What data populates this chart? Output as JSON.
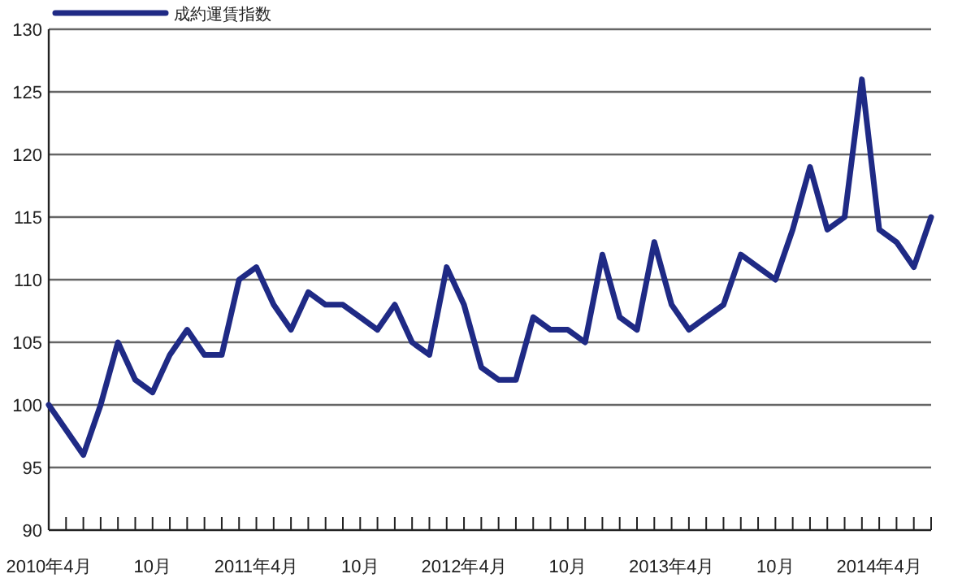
{
  "chart_data": {
    "type": "line",
    "x": [
      "2010-04",
      "2010-05",
      "2010-06",
      "2010-07",
      "2010-08",
      "2010-09",
      "2010-10",
      "2010-11",
      "2010-12",
      "2011-01",
      "2011-02",
      "2011-03",
      "2011-04",
      "2011-05",
      "2011-06",
      "2011-07",
      "2011-08",
      "2011-09",
      "2011-10",
      "2011-11",
      "2011-12",
      "2012-01",
      "2012-02",
      "2012-03",
      "2012-04",
      "2012-05",
      "2012-06",
      "2012-07",
      "2012-08",
      "2012-09",
      "2012-10",
      "2012-11",
      "2012-12",
      "2013-01",
      "2013-02",
      "2013-03",
      "2013-04",
      "2013-05",
      "2013-06",
      "2013-07",
      "2013-08",
      "2013-09",
      "2013-10",
      "2013-11",
      "2013-12",
      "2014-01",
      "2014-02",
      "2014-03",
      "2014-04",
      "2014-05",
      "2014-06",
      "2014-07"
    ],
    "series": [
      {
        "name": "成約運賃指数",
        "color": "#1f2a85",
        "values": [
          100,
          98,
          96,
          100,
          105,
          102,
          101,
          104,
          106,
          104,
          104,
          110,
          111,
          108,
          106,
          109,
          108,
          108,
          107,
          106,
          108,
          105,
          104,
          111,
          108,
          103,
          102,
          102,
          107,
          106,
          106,
          105,
          112,
          107,
          106,
          113,
          108,
          106,
          107,
          108,
          112,
          111,
          110,
          114,
          119,
          114,
          115,
          126,
          114,
          113,
          111,
          115
        ]
      }
    ],
    "xlim": [
      "2010-04",
      "2014-07"
    ],
    "xticks": [
      {
        "value": "2010-04",
        "label": "2010年4月"
      },
      {
        "value": "2010-05",
        "label": null
      },
      {
        "value": "2010-06",
        "label": null
      },
      {
        "value": "2010-07",
        "label": null
      },
      {
        "value": "2010-08",
        "label": null
      },
      {
        "value": "2010-09",
        "label": null
      },
      {
        "value": "2010-10",
        "label": "10月"
      },
      {
        "value": "2010-11",
        "label": null
      },
      {
        "value": "2010-12",
        "label": null
      },
      {
        "value": "2011-01",
        "label": null
      },
      {
        "value": "2011-02",
        "label": null
      },
      {
        "value": "2011-03",
        "label": null
      },
      {
        "value": "2011-04",
        "label": "2011年4月"
      },
      {
        "value": "2011-05",
        "label": null
      },
      {
        "value": "2011-06",
        "label": null
      },
      {
        "value": "2011-07",
        "label": null
      },
      {
        "value": "2011-08",
        "label": null
      },
      {
        "value": "2011-09",
        "label": null
      },
      {
        "value": "2011-10",
        "label": "10月"
      },
      {
        "value": "2011-11",
        "label": null
      },
      {
        "value": "2011-12",
        "label": null
      },
      {
        "value": "2012-01",
        "label": null
      },
      {
        "value": "2012-02",
        "label": null
      },
      {
        "value": "2012-03",
        "label": null
      },
      {
        "value": "2012-04",
        "label": "2012年4月"
      },
      {
        "value": "2012-05",
        "label": null
      },
      {
        "value": "2012-06",
        "label": null
      },
      {
        "value": "2012-07",
        "label": null
      },
      {
        "value": "2012-08",
        "label": null
      },
      {
        "value": "2012-09",
        "label": null
      },
      {
        "value": "2012-10",
        "label": "10月"
      },
      {
        "value": "2012-11",
        "label": null
      },
      {
        "value": "2012-12",
        "label": null
      },
      {
        "value": "2013-01",
        "label": null
      },
      {
        "value": "2013-02",
        "label": null
      },
      {
        "value": "2013-03",
        "label": null
      },
      {
        "value": "2013-04",
        "label": "2013年4月"
      },
      {
        "value": "2013-05",
        "label": null
      },
      {
        "value": "2013-06",
        "label": null
      },
      {
        "value": "2013-07",
        "label": null
      },
      {
        "value": "2013-08",
        "label": null
      },
      {
        "value": "2013-09",
        "label": null
      },
      {
        "value": "2013-10",
        "label": "10月"
      },
      {
        "value": "2013-11",
        "label": null
      },
      {
        "value": "2013-12",
        "label": null
      },
      {
        "value": "2014-01",
        "label": null
      },
      {
        "value": "2014-02",
        "label": null
      },
      {
        "value": "2014-03",
        "label": null
      },
      {
        "value": "2014-04",
        "label": "2014年4月"
      },
      {
        "value": "2014-05",
        "label": null
      },
      {
        "value": "2014-06",
        "label": null
      },
      {
        "value": "2014-07",
        "label": null
      }
    ],
    "ylim": [
      90,
      130
    ],
    "yticks": [
      90,
      95,
      100,
      105,
      110,
      115,
      120,
      125,
      130
    ],
    "grid": "y",
    "legend": "top left",
    "marker": "none",
    "line_style": "solid"
  }
}
